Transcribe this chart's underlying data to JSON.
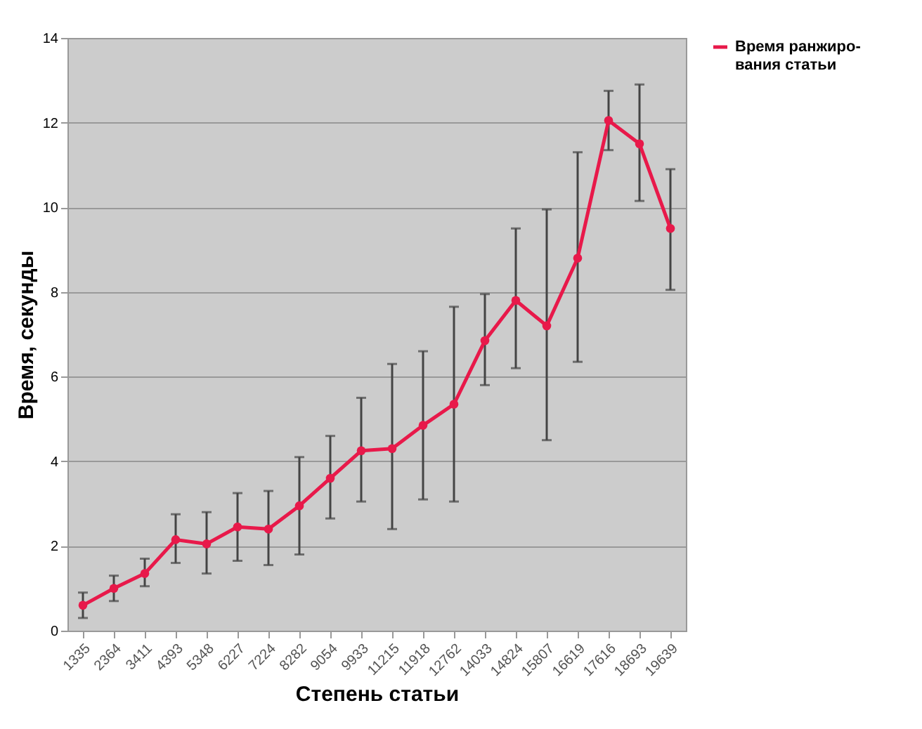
{
  "chart_data": {
    "type": "line",
    "xlabel": "Степень статьи",
    "ylabel": "Время, секунды",
    "categories": [
      "1335",
      "2364",
      "3411",
      "4393",
      "5348",
      "6227",
      "7224",
      "8282",
      "9054",
      "9933",
      "11215",
      "11918",
      "12762",
      "14033",
      "14824",
      "15807",
      "16619",
      "17616",
      "18693",
      "19639"
    ],
    "series": [
      {
        "name": "Время ранжиро-вания статьи",
        "color": "#e8194a",
        "values": [
          0.6,
          1.0,
          1.35,
          2.15,
          2.05,
          2.45,
          2.4,
          2.95,
          3.6,
          4.25,
          4.3,
          4.85,
          5.35,
          6.85,
          7.8,
          7.2,
          8.8,
          12.05,
          11.5,
          9.5
        ],
        "errors": [
          [
            0.3,
            0.9
          ],
          [
            0.7,
            1.3
          ],
          [
            1.05,
            1.7
          ],
          [
            1.6,
            2.75
          ],
          [
            1.35,
            2.8
          ],
          [
            1.65,
            3.25
          ],
          [
            1.55,
            3.3
          ],
          [
            1.8,
            4.1
          ],
          [
            2.65,
            4.6
          ],
          [
            3.05,
            5.5
          ],
          [
            2.4,
            6.3
          ],
          [
            3.1,
            6.6
          ],
          [
            3.05,
            7.65
          ],
          [
            5.8,
            7.95
          ],
          [
            6.2,
            9.5
          ],
          [
            4.5,
            9.95
          ],
          [
            6.35,
            11.3
          ],
          [
            11.35,
            12.75
          ],
          [
            10.15,
            12.9
          ],
          [
            8.05,
            10.9
          ]
        ]
      }
    ],
    "ylim": [
      0,
      14
    ],
    "yticks": [
      0,
      2,
      4,
      6,
      8,
      10,
      12,
      14
    ],
    "grid": "y",
    "legend": "right",
    "marker": "circle",
    "line_style": "solid"
  }
}
